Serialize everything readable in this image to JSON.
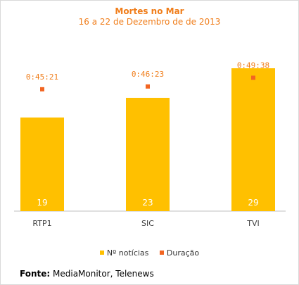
{
  "chart_data": {
    "type": "bar",
    "title": "Mortes no Mar",
    "subtitle": "16 a 22 de Dezembro de de 2013",
    "categories": [
      "RTP1",
      "SIC",
      "TVI"
    ],
    "series": [
      {
        "name": "Nº notícias",
        "values": [
          19,
          23,
          29
        ],
        "color": "#ffc000",
        "kind": "bar",
        "labels": [
          "19",
          "23",
          "29"
        ]
      },
      {
        "name": "Duração",
        "values_seconds": [
          2721,
          2783,
          2978
        ],
        "labels": [
          "0:45:21",
          "0:46:23",
          "0:49:38"
        ],
        "color": "#f26522",
        "kind": "point"
      }
    ],
    "ylim_bars": [
      0,
      30
    ],
    "ylim_points_seconds": [
      0,
      3300
    ],
    "grid": false,
    "legend_position": "bottom"
  },
  "source": {
    "label": "Fonte:",
    "text": "MediaMonitor, Telenews"
  }
}
